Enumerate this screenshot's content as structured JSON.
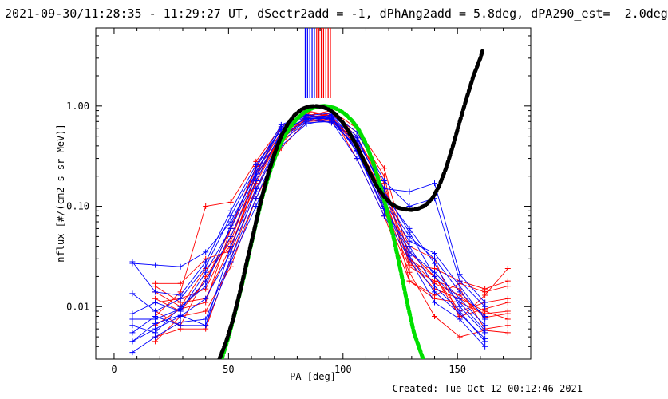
{
  "header": {
    "title": "2021-09-30/11:28:35 - 11:29:27 UT, dSectr2add = -1, dPhAng2add = 5.8deg, dPA290_est=  2.0deg"
  },
  "footer": {
    "created": "Created: Tue Oct 12 00:12:46 2021"
  },
  "colors": {
    "red": "#ff0000",
    "blue": "#0000ff",
    "black": "#000000",
    "green": "#00e000"
  },
  "chart_data": {
    "type": "line",
    "xlabel": "PA [deg]",
    "ylabel": "nflux [#/(cm2 s sr MeV)]",
    "xlim": [
      -8,
      182
    ],
    "ylim": [
      0.003,
      6
    ],
    "yscale": "log",
    "xticks": [
      {
        "value": 0,
        "label": "0"
      },
      {
        "value": 50,
        "label": "50"
      },
      {
        "value": 100,
        "label": "100"
      },
      {
        "value": 150,
        "label": "150"
      }
    ],
    "yticks": [
      {
        "value": 1,
        "label": "1.00"
      },
      {
        "value": 0.1,
        "label": "0.10"
      },
      {
        "value": 0.01,
        "label": "0.01"
      }
    ],
    "vertical_markers": {
      "blue": [
        83.5,
        84.5,
        85.5,
        86.5,
        87.5
      ],
      "red": [
        88.5,
        89.5,
        90.5,
        91.5,
        92.5,
        93.5,
        94.5
      ]
    },
    "fit_black": [
      [
        46,
        0.003
      ],
      [
        49,
        0.0045
      ],
      [
        52,
        0.0075
      ],
      [
        55,
        0.014
      ],
      [
        58,
        0.028
      ],
      [
        61,
        0.055
      ],
      [
        64,
        0.11
      ],
      [
        67,
        0.2
      ],
      [
        70,
        0.33
      ],
      [
        73,
        0.5
      ],
      [
        76,
        0.67
      ],
      [
        79,
        0.82
      ],
      [
        82,
        0.93
      ],
      [
        85,
        0.99
      ],
      [
        88,
        1.0
      ],
      [
        91,
        0.98
      ],
      [
        94,
        0.92
      ],
      [
        97,
        0.82
      ],
      [
        100,
        0.68
      ],
      [
        103,
        0.53
      ],
      [
        106,
        0.4
      ],
      [
        109,
        0.29
      ],
      [
        112,
        0.21
      ],
      [
        115,
        0.155
      ],
      [
        118,
        0.125
      ],
      [
        121,
        0.106
      ],
      [
        124,
        0.097
      ],
      [
        127,
        0.093
      ],
      [
        130,
        0.092
      ],
      [
        133,
        0.095
      ],
      [
        136,
        0.102
      ],
      [
        139,
        0.12
      ],
      [
        142,
        0.16
      ],
      [
        145,
        0.24
      ],
      [
        148,
        0.4
      ],
      [
        151,
        0.7
      ],
      [
        154,
        1.2
      ],
      [
        157,
        2.0
      ],
      [
        160,
        3.0
      ],
      [
        161,
        3.6
      ]
    ],
    "fit_green": [
      [
        47,
        0.003
      ],
      [
        50,
        0.005
      ],
      [
        53,
        0.009
      ],
      [
        56,
        0.017
      ],
      [
        59,
        0.034
      ],
      [
        62,
        0.068
      ],
      [
        65,
        0.13
      ],
      [
        68,
        0.22
      ],
      [
        71,
        0.34
      ],
      [
        74,
        0.48
      ],
      [
        77,
        0.62
      ],
      [
        80,
        0.75
      ],
      [
        83,
        0.86
      ],
      [
        86,
        0.94
      ],
      [
        89,
        0.99
      ],
      [
        92,
        1.0
      ],
      [
        95,
        0.98
      ],
      [
        98,
        0.92
      ],
      [
        101,
        0.83
      ],
      [
        104,
        0.71
      ],
      [
        107,
        0.57
      ],
      [
        110,
        0.42
      ],
      [
        113,
        0.28
      ],
      [
        116,
        0.17
      ],
      [
        119,
        0.095
      ],
      [
        122,
        0.05
      ],
      [
        125,
        0.024
      ],
      [
        128,
        0.011
      ],
      [
        131,
        0.0055
      ],
      [
        134,
        0.0035
      ],
      [
        135,
        0.003
      ]
    ],
    "series_red": [
      [
        [
          18,
          0.016
        ],
        [
          29,
          0.011
        ],
        [
          40,
          0.012
        ],
        [
          51,
          0.04
        ],
        [
          62,
          0.17
        ],
        [
          73,
          0.5
        ],
        [
          84,
          0.72
        ],
        [
          95,
          0.75
        ],
        [
          106,
          0.4
        ],
        [
          118,
          0.12
        ],
        [
          129,
          0.028
        ],
        [
          140,
          0.015
        ],
        [
          151,
          0.012
        ],
        [
          162,
          0.009
        ],
        [
          172,
          0.0075
        ]
      ],
      [
        [
          18,
          0.012
        ],
        [
          29,
          0.009
        ],
        [
          40,
          0.018
        ],
        [
          51,
          0.06
        ],
        [
          62,
          0.24
        ],
        [
          73,
          0.45
        ],
        [
          84,
          0.8
        ],
        [
          95,
          0.9
        ],
        [
          106,
          0.6
        ],
        [
          118,
          0.24
        ],
        [
          129,
          0.03
        ],
        [
          140,
          0.02
        ],
        [
          151,
          0.008
        ],
        [
          162,
          0.0095
        ],
        [
          172,
          0.011
        ]
      ],
      [
        [
          18,
          0.008
        ],
        [
          29,
          0.014
        ],
        [
          40,
          0.1
        ],
        [
          51,
          0.11
        ],
        [
          62,
          0.28
        ],
        [
          73,
          0.62
        ],
        [
          84,
          0.85
        ],
        [
          95,
          0.7
        ],
        [
          106,
          0.45
        ],
        [
          118,
          0.1
        ],
        [
          129,
          0.025
        ],
        [
          140,
          0.018
        ],
        [
          151,
          0.015
        ],
        [
          162,
          0.006
        ],
        [
          172,
          0.0065
        ]
      ],
      [
        [
          18,
          0.017
        ],
        [
          29,
          0.017
        ],
        [
          40,
          0.03
        ],
        [
          51,
          0.036
        ],
        [
          62,
          0.22
        ],
        [
          73,
          0.55
        ],
        [
          84,
          0.9
        ],
        [
          95,
          0.8
        ],
        [
          106,
          0.3
        ],
        [
          118,
          0.08
        ],
        [
          129,
          0.018
        ],
        [
          140,
          0.013
        ],
        [
          151,
          0.017
        ],
        [
          162,
          0.014
        ],
        [
          172,
          0.016
        ]
      ],
      [
        [
          18,
          0.005
        ],
        [
          29,
          0.006
        ],
        [
          40,
          0.006
        ],
        [
          51,
          0.03
        ],
        [
          62,
          0.15
        ],
        [
          73,
          0.42
        ],
        [
          84,
          0.75
        ],
        [
          95,
          0.85
        ],
        [
          106,
          0.5
        ],
        [
          118,
          0.15
        ],
        [
          129,
          0.04
        ],
        [
          140,
          0.03
        ],
        [
          151,
          0.0075
        ],
        [
          162,
          0.013
        ],
        [
          172,
          0.024
        ]
      ],
      [
        [
          18,
          0.011
        ],
        [
          29,
          0.012
        ],
        [
          40,
          0.015
        ],
        [
          51,
          0.05
        ],
        [
          62,
          0.2
        ],
        [
          73,
          0.48
        ],
        [
          84,
          0.78
        ],
        [
          95,
          0.82
        ],
        [
          106,
          0.55
        ],
        [
          118,
          0.2
        ],
        [
          129,
          0.018
        ],
        [
          140,
          0.012
        ],
        [
          151,
          0.011
        ],
        [
          162,
          0.0085
        ],
        [
          172,
          0.009
        ]
      ],
      [
        [
          18,
          0.0045
        ],
        [
          29,
          0.008
        ],
        [
          40,
          0.009
        ],
        [
          51,
          0.025
        ],
        [
          62,
          0.12
        ],
        [
          73,
          0.38
        ],
        [
          84,
          0.7
        ],
        [
          95,
          0.72
        ],
        [
          106,
          0.38
        ],
        [
          118,
          0.09
        ],
        [
          129,
          0.022
        ],
        [
          140,
          0.008
        ],
        [
          151,
          0.005
        ],
        [
          162,
          0.0058
        ],
        [
          172,
          0.0055
        ]
      ],
      [
        [
          18,
          0.014
        ],
        [
          29,
          0.01
        ],
        [
          40,
          0.024
        ],
        [
          51,
          0.04
        ],
        [
          62,
          0.18
        ],
        [
          73,
          0.52
        ],
        [
          84,
          0.88
        ],
        [
          95,
          0.78
        ],
        [
          106,
          0.42
        ],
        [
          118,
          0.13
        ],
        [
          129,
          0.035
        ],
        [
          140,
          0.02
        ],
        [
          151,
          0.009
        ],
        [
          162,
          0.011
        ],
        [
          172,
          0.012
        ]
      ],
      [
        [
          18,
          0.0065
        ],
        [
          29,
          0.0095
        ],
        [
          40,
          0.011
        ],
        [
          51,
          0.06
        ],
        [
          62,
          0.25
        ],
        [
          73,
          0.58
        ],
        [
          84,
          0.82
        ],
        [
          95,
          0.74
        ],
        [
          106,
          0.36
        ],
        [
          118,
          0.11
        ],
        [
          129,
          0.03
        ],
        [
          140,
          0.017
        ],
        [
          151,
          0.013
        ],
        [
          162,
          0.0078
        ],
        [
          172,
          0.0085
        ]
      ],
      [
        [
          18,
          0.009
        ],
        [
          29,
          0.0065
        ],
        [
          40,
          0.02
        ],
        [
          51,
          0.045
        ],
        [
          62,
          0.21
        ],
        [
          73,
          0.46
        ],
        [
          84,
          0.76
        ],
        [
          95,
          0.68
        ],
        [
          106,
          0.48
        ],
        [
          118,
          0.17
        ],
        [
          129,
          0.026
        ],
        [
          140,
          0.024
        ],
        [
          151,
          0.018
        ],
        [
          162,
          0.015
        ],
        [
          172,
          0.018
        ]
      ]
    ],
    "series_blue": [
      [
        [
          8,
          0.027
        ],
        [
          18,
          0.026
        ],
        [
          29,
          0.025
        ],
        [
          40,
          0.035
        ],
        [
          51,
          0.07
        ],
        [
          62,
          0.21
        ],
        [
          73,
          0.6
        ],
        [
          84,
          0.78
        ],
        [
          95,
          0.8
        ],
        [
          106,
          0.45
        ],
        [
          118,
          0.15
        ],
        [
          129,
          0.14
        ],
        [
          140,
          0.17
        ],
        [
          151,
          0.021
        ],
        [
          162,
          0.011
        ]
      ],
      [
        [
          8,
          0.0135
        ],
        [
          18,
          0.009
        ],
        [
          29,
          0.012
        ],
        [
          40,
          0.025
        ],
        [
          51,
          0.08
        ],
        [
          62,
          0.24
        ],
        [
          73,
          0.65
        ],
        [
          84,
          0.82
        ],
        [
          95,
          0.72
        ],
        [
          106,
          0.38
        ],
        [
          118,
          0.12
        ],
        [
          129,
          0.05
        ],
        [
          140,
          0.03
        ],
        [
          151,
          0.014
        ],
        [
          162,
          0.008
        ]
      ],
      [
        [
          8,
          0.0075
        ],
        [
          18,
          0.0075
        ],
        [
          29,
          0.0095
        ],
        [
          40,
          0.018
        ],
        [
          51,
          0.05
        ],
        [
          62,
          0.18
        ],
        [
          73,
          0.55
        ],
        [
          84,
          0.75
        ],
        [
          95,
          0.75
        ],
        [
          106,
          0.42
        ],
        [
          118,
          0.1
        ],
        [
          129,
          0.035
        ],
        [
          140,
          0.022
        ],
        [
          151,
          0.012
        ],
        [
          162,
          0.0065
        ]
      ],
      [
        [
          8,
          0.0055
        ],
        [
          18,
          0.008
        ],
        [
          29,
          0.0065
        ],
        [
          40,
          0.0065
        ],
        [
          51,
          0.04
        ],
        [
          62,
          0.15
        ],
        [
          73,
          0.5
        ],
        [
          84,
          0.72
        ],
        [
          95,
          0.82
        ],
        [
          106,
          0.5
        ],
        [
          118,
          0.13
        ],
        [
          129,
          0.06
        ],
        [
          140,
          0.027
        ],
        [
          151,
          0.01
        ],
        [
          162,
          0.0055
        ]
      ],
      [
        [
          8,
          0.0045
        ],
        [
          18,
          0.006
        ],
        [
          29,
          0.008
        ],
        [
          40,
          0.012
        ],
        [
          51,
          0.035
        ],
        [
          62,
          0.14
        ],
        [
          73,
          0.48
        ],
        [
          84,
          0.7
        ],
        [
          95,
          0.78
        ],
        [
          106,
          0.35
        ],
        [
          118,
          0.09
        ],
        [
          129,
          0.04
        ],
        [
          140,
          0.016
        ],
        [
          151,
          0.009
        ],
        [
          162,
          0.0045
        ]
      ],
      [
        [
          8,
          0.0035
        ],
        [
          18,
          0.005
        ],
        [
          29,
          0.007
        ],
        [
          40,
          0.0075
        ],
        [
          51,
          0.03
        ],
        [
          62,
          0.12
        ],
        [
          73,
          0.45
        ],
        [
          84,
          0.68
        ],
        [
          95,
          0.7
        ],
        [
          106,
          0.3
        ],
        [
          118,
          0.08
        ],
        [
          129,
          0.03
        ],
        [
          140,
          0.011
        ],
        [
          151,
          0.0075
        ],
        [
          162,
          0.004
        ]
      ],
      [
        [
          8,
          0.0065
        ],
        [
          18,
          0.0055
        ],
        [
          29,
          0.01
        ],
        [
          40,
          0.016
        ],
        [
          51,
          0.065
        ],
        [
          62,
          0.22
        ],
        [
          73,
          0.62
        ],
        [
          84,
          0.8
        ],
        [
          95,
          0.85
        ],
        [
          106,
          0.55
        ],
        [
          118,
          0.18
        ],
        [
          129,
          0.1
        ],
        [
          140,
          0.12
        ],
        [
          151,
          0.018
        ],
        [
          162,
          0.01
        ]
      ],
      [
        [
          8,
          0.028
        ],
        [
          18,
          0.014
        ],
        [
          29,
          0.013
        ],
        [
          40,
          0.028
        ],
        [
          51,
          0.09
        ],
        [
          62,
          0.26
        ],
        [
          73,
          0.58
        ],
        [
          84,
          0.74
        ],
        [
          95,
          0.68
        ],
        [
          106,
          0.4
        ],
        [
          118,
          0.11
        ],
        [
          129,
          0.045
        ],
        [
          140,
          0.034
        ],
        [
          151,
          0.016
        ],
        [
          162,
          0.0075
        ]
      ],
      [
        [
          8,
          0.0045
        ],
        [
          18,
          0.0068
        ],
        [
          29,
          0.0082
        ],
        [
          40,
          0.0065
        ],
        [
          51,
          0.028
        ],
        [
          62,
          0.1
        ],
        [
          73,
          0.4
        ],
        [
          84,
          0.66
        ],
        [
          95,
          0.74
        ],
        [
          106,
          0.48
        ],
        [
          118,
          0.14
        ],
        [
          129,
          0.055
        ],
        [
          140,
          0.02
        ],
        [
          151,
          0.011
        ],
        [
          162,
          0.0058
        ]
      ],
      [
        [
          8,
          0.0085
        ],
        [
          18,
          0.011
        ],
        [
          29,
          0.009
        ],
        [
          40,
          0.022
        ],
        [
          51,
          0.06
        ],
        [
          62,
          0.2
        ],
        [
          73,
          0.52
        ],
        [
          84,
          0.77
        ],
        [
          95,
          0.76
        ],
        [
          106,
          0.36
        ],
        [
          118,
          0.095
        ],
        [
          129,
          0.032
        ],
        [
          140,
          0.014
        ],
        [
          151,
          0.0085
        ],
        [
          162,
          0.0048
        ]
      ]
    ]
  }
}
